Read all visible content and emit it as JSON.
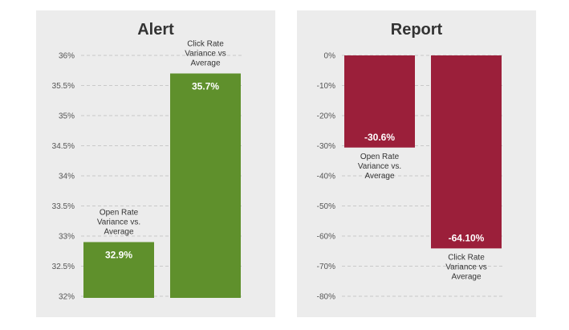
{
  "chart_data": [
    {
      "type": "bar",
      "title": "Alert",
      "ylim": [
        32,
        36
      ],
      "yticks": [
        "32%",
        "32.5%",
        "33%",
        "33.5%",
        "34%",
        "34.5%",
        "35%",
        "35.5%",
        "36%"
      ],
      "grid": true,
      "color": "#5f902c",
      "categories": [
        [
          "Open Rate",
          "Variance vs.",
          "Average"
        ],
        [
          "Click Rate",
          "Variance vs",
          "Average"
        ]
      ],
      "values": [
        32.9,
        35.7
      ],
      "data_labels": [
        "32.9%",
        "35.7%"
      ]
    },
    {
      "type": "bar",
      "title": "Report",
      "ylim": [
        -80,
        0
      ],
      "yticks": [
        "0%",
        "-10%",
        "-20%",
        "-30%",
        "-40%",
        "-50%",
        "-60%",
        "-70%",
        "-80%"
      ],
      "grid": true,
      "color": "#9b1f3a",
      "categories": [
        [
          "Open Rate",
          "Variance vs.",
          "Average"
        ],
        [
          "Click Rate",
          "Variance vs",
          "Average"
        ]
      ],
      "values": [
        -30.6,
        -64.1
      ],
      "data_labels": [
        "-30.6%",
        "-64.10%"
      ]
    }
  ]
}
